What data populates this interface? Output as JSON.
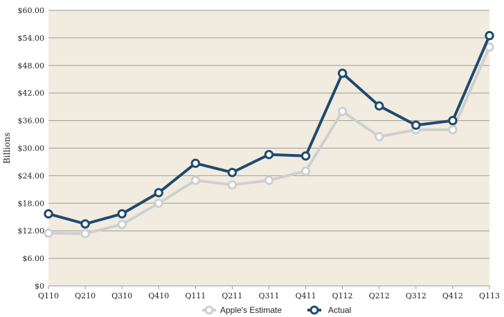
{
  "colors": {
    "plot_background": "#f1ecdf",
    "gridline": "#9c9a93",
    "estimate_series": "#cfcfcf",
    "actual_series": "#1f4a6e"
  },
  "chart_data": {
    "type": "line",
    "ylabel": "Billions",
    "ylim": [
      0,
      60
    ],
    "ytick_values": [
      0,
      6,
      12,
      18,
      24,
      30,
      36,
      42,
      48,
      54,
      60
    ],
    "ytick_labels": [
      "$0",
      "$6.00",
      "$12.00",
      "$18.00",
      "$24.00",
      "$30.00",
      "$36.00",
      "$42.00",
      "$48.00",
      "$54.00",
      "$60.00"
    ],
    "categories": [
      "Q110",
      "Q210",
      "Q310",
      "Q410",
      "Q111",
      "Q211",
      "Q311",
      "Q411",
      "Q112",
      "Q212",
      "Q312",
      "Q412",
      "Q113"
    ],
    "grid": true,
    "legend_position": "bottom",
    "series": [
      {
        "name": "Apple's Estimate",
        "values": [
          11.5,
          11.4,
          13.4,
          18.0,
          23.0,
          22.0,
          23.0,
          25.0,
          38.0,
          32.5,
          34.0,
          34.0,
          52.0
        ]
      },
      {
        "name": "Actual",
        "values": [
          15.7,
          13.5,
          15.7,
          20.3,
          26.7,
          24.7,
          28.6,
          28.3,
          46.3,
          39.2,
          35.0,
          36.0,
          54.5
        ]
      }
    ]
  }
}
